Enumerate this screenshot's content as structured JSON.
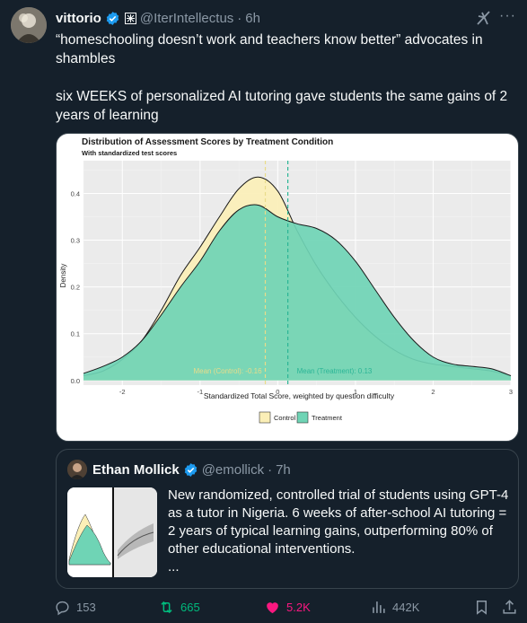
{
  "tweet": {
    "author_name": "vittorio",
    "handle": "@IterIntellectus",
    "separator": "·",
    "time": "6h",
    "more_label": "···",
    "paragraphs": [
      "“homeschooling doesn’t work and teachers know better” advocates in shambles",
      "six WEEKS of personalized AI tutoring gave students the same gains of 2 years of learning"
    ]
  },
  "chart_data": {
    "type": "area",
    "title": "Distribution of Assessment Scores by Treatment Condition",
    "subtitle": "With standardized test scores",
    "xlabel": "Standardized Total Score, weighted by question difficulty",
    "ylabel": "Density",
    "xlim": [
      -2.5,
      3
    ],
    "ylim": [
      -0.01,
      0.47
    ],
    "x_ticks": [
      "-2",
      "-1",
      "0",
      "1",
      "2",
      "3"
    ],
    "y_ticks": [
      "0.0",
      "0.1",
      "0.2",
      "0.3",
      "0.4"
    ],
    "grid": true,
    "legend_position": "bottom",
    "series": [
      {
        "name": "Control",
        "color": "#fbefb7",
        "x": [
          -2.5,
          -2.25,
          -2.0,
          -1.75,
          -1.5,
          -1.25,
          -1.0,
          -0.75,
          -0.5,
          -0.25,
          0.0,
          0.25,
          0.5,
          0.75,
          1.0,
          1.25,
          1.5,
          1.75,
          2.0,
          2.25,
          2.5,
          2.75,
          3.0
        ],
        "values": [
          0.01,
          0.02,
          0.045,
          0.085,
          0.15,
          0.225,
          0.285,
          0.35,
          0.41,
          0.435,
          0.405,
          0.32,
          0.245,
          0.185,
          0.135,
          0.095,
          0.065,
          0.045,
          0.035,
          0.03,
          0.025,
          0.02,
          0.01
        ]
      },
      {
        "name": "Treatment",
        "color": "#6fd4b5",
        "x": [
          -2.5,
          -2.25,
          -2.0,
          -1.75,
          -1.5,
          -1.25,
          -1.0,
          -0.75,
          -0.5,
          -0.25,
          0.0,
          0.25,
          0.5,
          0.75,
          1.0,
          1.25,
          1.5,
          1.75,
          2.0,
          2.25,
          2.5,
          2.75,
          3.0
        ],
        "values": [
          0.015,
          0.03,
          0.05,
          0.085,
          0.14,
          0.2,
          0.255,
          0.32,
          0.365,
          0.375,
          0.35,
          0.335,
          0.325,
          0.3,
          0.255,
          0.195,
          0.135,
          0.085,
          0.05,
          0.035,
          0.03,
          0.025,
          0.01
        ]
      }
    ],
    "annotations": [
      {
        "text": "Mean (Control): -0.16",
        "x": -0.16,
        "color": "#e9dc8a"
      },
      {
        "text": "Mean (Treatment): 0.13",
        "x": 0.13,
        "color": "#2bb596"
      }
    ]
  },
  "quote": {
    "author_name": "Ethan Mollick",
    "handle": "@emollick",
    "separator": "·",
    "time": "7h",
    "text": "New randomized, controlled trial of students using GPT-4 as a tutor in Nigeria. 6 weeks of after-school AI tutoring = 2 years of typical learning gains, outperforming 80% of other educational interventions.",
    "ellipsis": "..."
  },
  "actions": {
    "reply_count": "153",
    "retweet_count": "665",
    "like_count": "5.2K",
    "views_count": "442K"
  },
  "colors": {
    "background": "#15202b",
    "text": "#f7f9f9",
    "secondary_text": "#8b98a5",
    "retweet_active": "#00ba7c",
    "like_active": "#f91880",
    "verified": "#1d9bf0",
    "border": "#38444d"
  },
  "icons": {
    "verified": "verified-badge-icon",
    "affiliate": "affiliate-badge-icon",
    "grok": "grok-icon",
    "reply": "reply-icon",
    "retweet": "retweet-icon",
    "like": "heart-icon",
    "views": "views-icon",
    "bookmark": "bookmark-icon",
    "share": "share-icon"
  }
}
